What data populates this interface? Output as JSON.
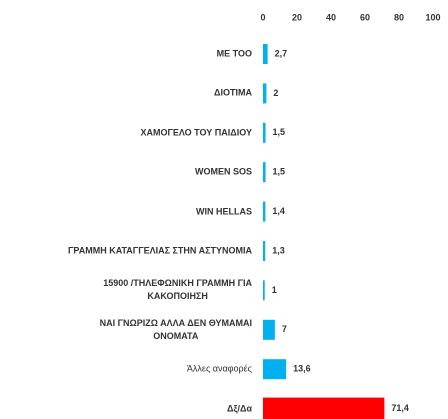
{
  "chart_data": {
    "type": "barh",
    "categories": [
      "ME TOO",
      "ΔΙΟΤΙΜΑ",
      "ΧΑΜΟΓΕΛΟ ΤΟΥ ΠΑΙΔΙΟΥ",
      "WOMEN SOS",
      "WIN HELLAS",
      "ΓΡΑΜΜΗ ΚΑΤΑΓΓΕΛΙΑΣ ΣΤΗΝ ΑΣΤΥΝΟΜΙΑ",
      "15900 /ΤΗΛΕΦΩΝΙΚΗ ΓΡΑΜΜΗ ΓΙΑ\nΚΑΚΟΠΟΙΗΣΗ",
      "ΝΑΙ ΓΝΩΡΙΖΩ ΑΛΛΑ ΔΕΝ ΘΥΜΑΜΑΙ\nΟΝΟΜΑΤΑ",
      "Άλλες αναφορές",
      "Δξ/Δα"
    ],
    "values": [
      2.7,
      2,
      1.5,
      1.5,
      1.4,
      1.3,
      1,
      7,
      13.6,
      71.4
    ],
    "value_labels": [
      "2,7",
      "2",
      "1,5",
      "1,5",
      "1,4",
      "1,3",
      "1",
      "7",
      "13,6",
      "71,4"
    ],
    "colors": [
      "#00b0f0",
      "#00b0f0",
      "#00b0f0",
      "#00b0f0",
      "#00b0f0",
      "#00b0f0",
      "#00b0f0",
      "#00b0f0",
      "#00b0f0",
      "#ff0000"
    ],
    "xlim": [
      0,
      100
    ],
    "xticks": [
      0,
      20,
      40,
      60,
      80,
      100
    ],
    "grid": false
  }
}
